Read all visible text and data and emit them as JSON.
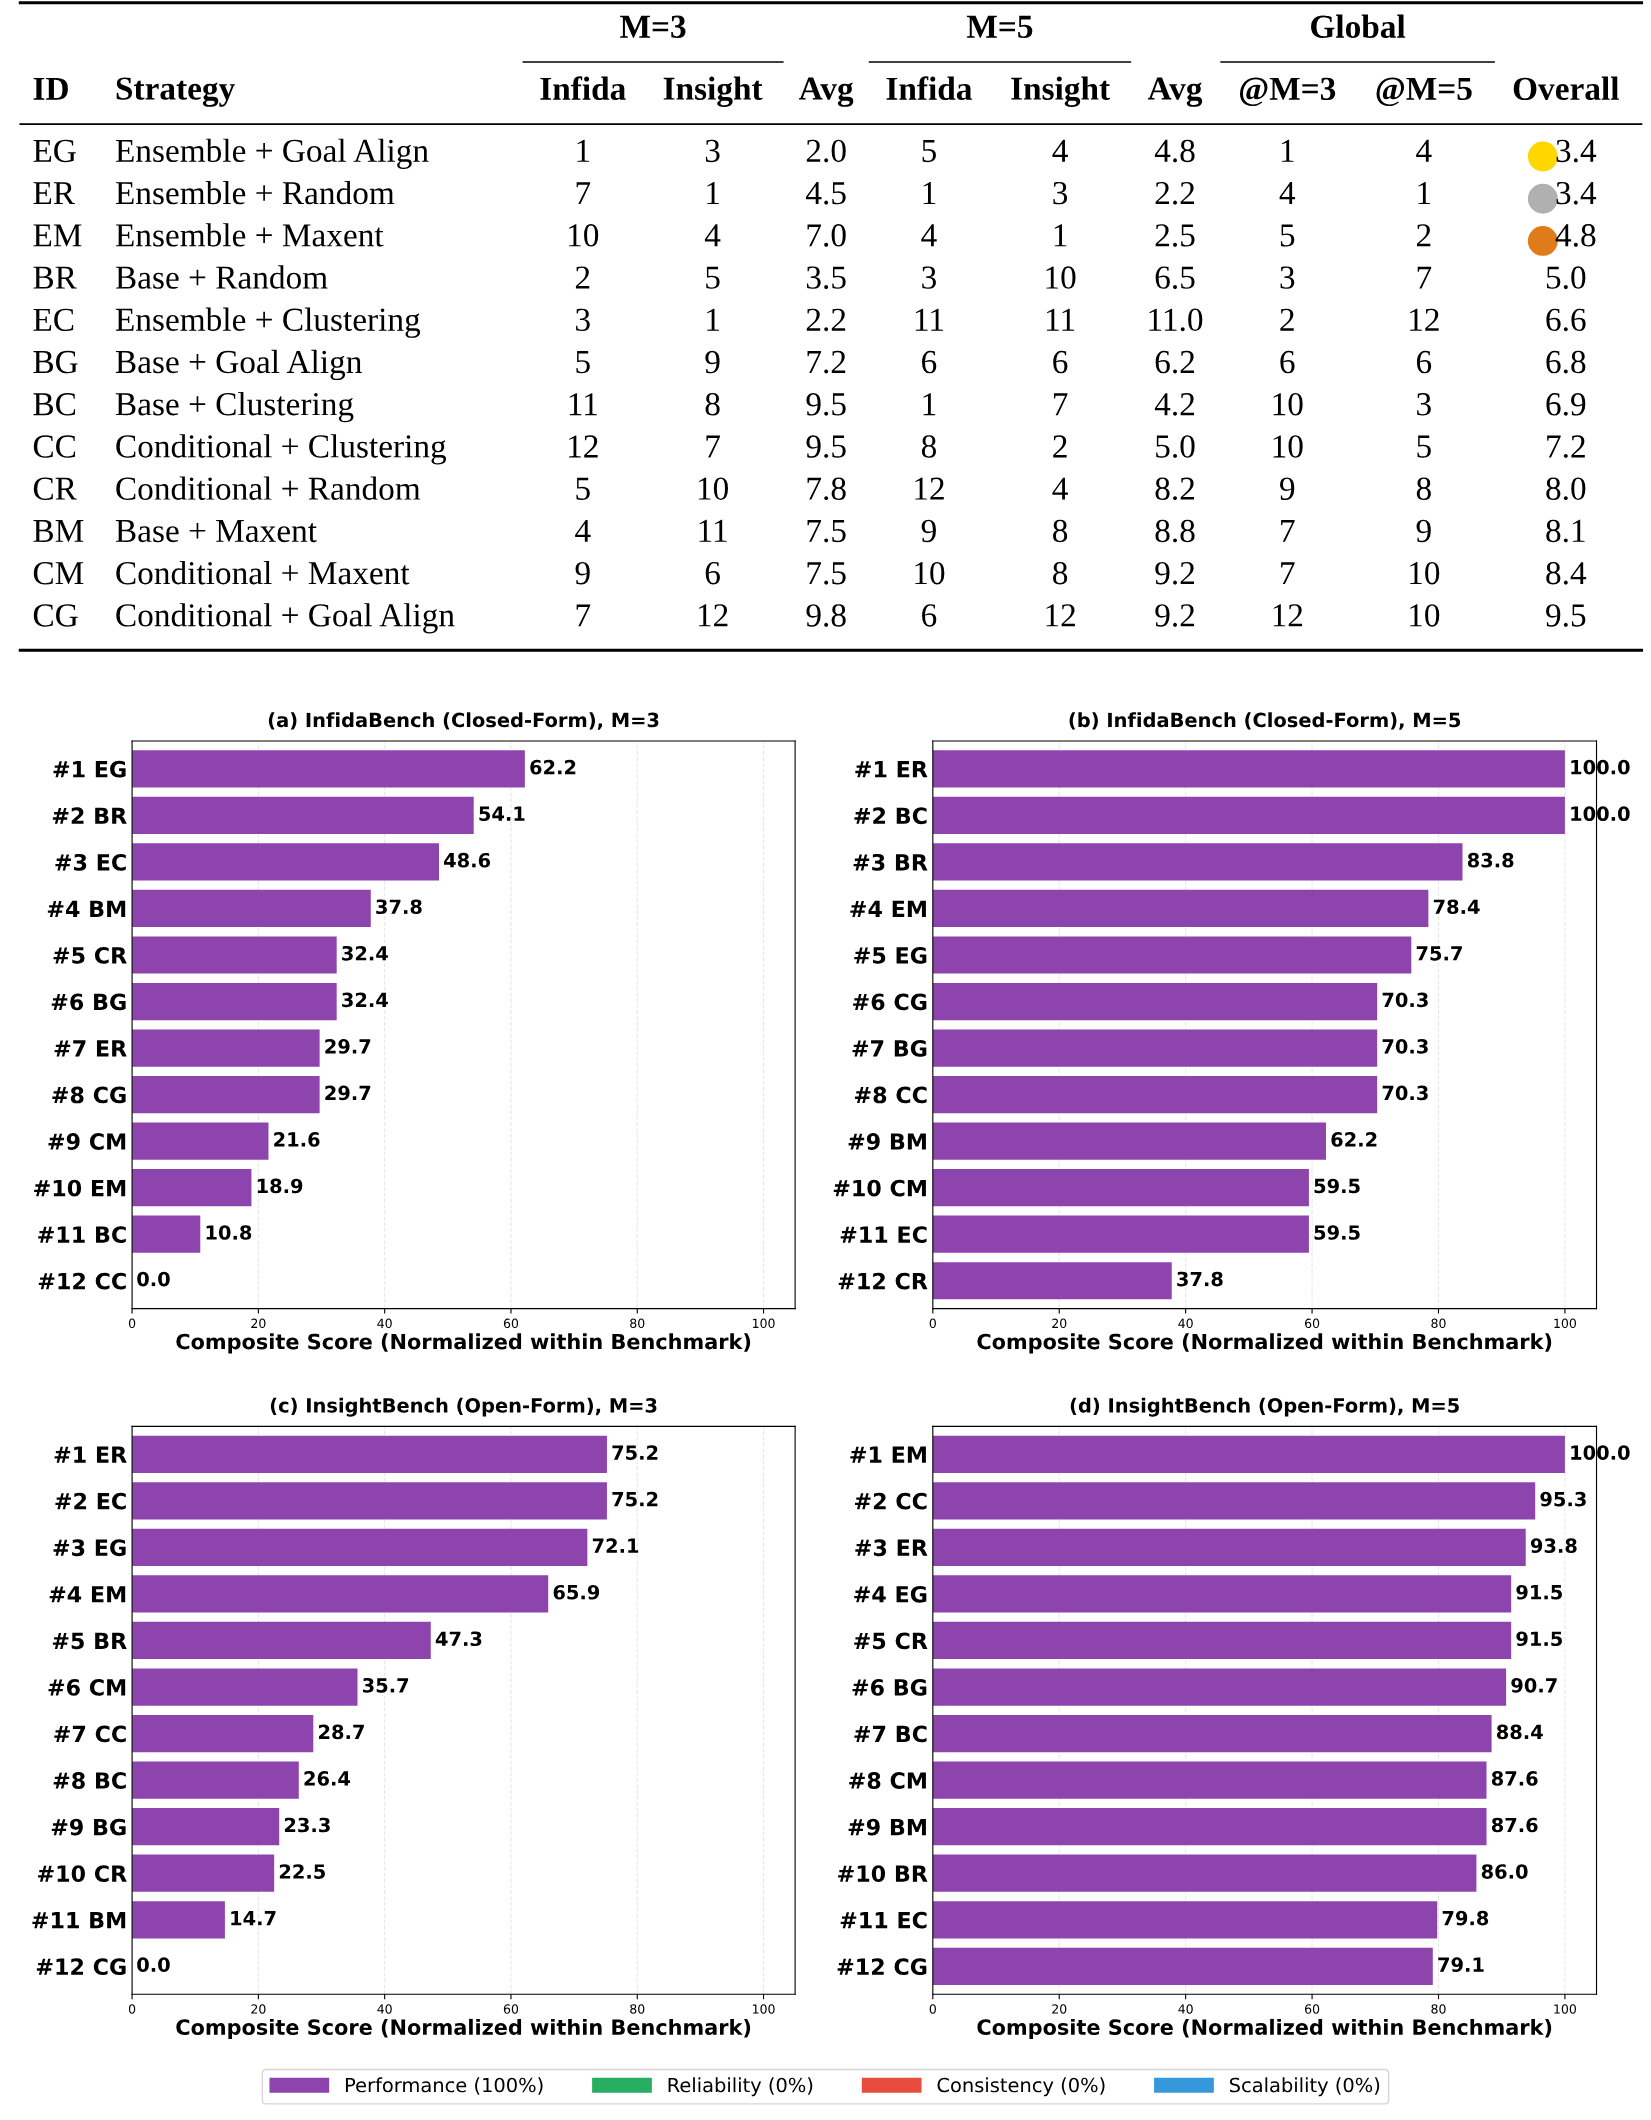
{
  "chart_data": [
    {
      "type": "other",
      "ylabel": "ID",
      "y2label": "Strategy",
      "annotations": [
        "M=3",
        "M=5",
        "Global"
      ],
      "categories": [
        "Infida",
        "Insight",
        "Avg",
        "Infida",
        "Insight",
        "Avg",
        "@M=3",
        "@M=5",
        "Overall"
      ],
      "y_categories": [
        "EG",
        "ER",
        "EM",
        "BR",
        "EC",
        "BG",
        "BC",
        "CC",
        "CR",
        "BM",
        "CM",
        "CG"
      ],
      "y2_categories": [
        "Ensemble + Goal Align",
        "Ensemble + Random",
        "Ensemble + Maxent",
        "Base + Random",
        "Ensemble + Clustering",
        "Base + Goal Align",
        "Base + Clustering",
        "Conditional + Clustering",
        "Conditional + Random",
        "Base + Maxent",
        "Conditional + Maxent",
        "Conditional + Goal Align"
      ],
      "cell_labels": [
        [
          "1",
          "3",
          "2.0",
          "5",
          "4",
          "4.8",
          "1",
          "4",
          "3.4"
        ],
        [
          "7",
          "1",
          "4.5",
          "1",
          "3",
          "2.2",
          "4",
          "1",
          "3.4"
        ],
        [
          "10",
          "4",
          "7.0",
          "4",
          "1",
          "2.5",
          "5",
          "2",
          "4.8"
        ],
        [
          "2",
          "5",
          "3.5",
          "3",
          "10",
          "6.5",
          "3",
          "7",
          "5.0"
        ],
        [
          "3",
          "1",
          "2.2",
          "11",
          "11",
          "11.0",
          "2",
          "12",
          "6.6"
        ],
        [
          "5",
          "9",
          "7.2",
          "6",
          "6",
          "6.2",
          "6",
          "6",
          "6.8"
        ],
        [
          "11",
          "8",
          "9.5",
          "1",
          "7",
          "4.2",
          "10",
          "3",
          "6.9"
        ],
        [
          "12",
          "7",
          "9.5",
          "8",
          "2",
          "5.0",
          "10",
          "5",
          "7.2"
        ],
        [
          "5",
          "10",
          "7.8",
          "12",
          "4",
          "8.2",
          "9",
          "8",
          "8.0"
        ],
        [
          "4",
          "11",
          "7.5",
          "9",
          "8",
          "8.8",
          "7",
          "9",
          "8.1"
        ],
        [
          "9",
          "6",
          "7.5",
          "10",
          "8",
          "9.2",
          "7",
          "10",
          "8.4"
        ],
        [
          "7",
          "12",
          "9.8",
          "6",
          "12",
          "9.2",
          "12",
          "10",
          "9.5"
        ]
      ],
      "colors": [
        "#ffd700",
        "#b0b0b0",
        "#e07b1a",
        null,
        null,
        null,
        null,
        null,
        null,
        null,
        null,
        null
      ]
    },
    {
      "type": "bar",
      "orientation": "horizontal",
      "title": "(a) InfidaBench (Closed-Form), M=3",
      "xlabel": "Composite Score (Normalized within Benchmark)",
      "categories": [
        "#1 EG",
        "#2 BR",
        "#3 EC",
        "#4 BM",
        "#5 CR",
        "#6 BG",
        "#7 ER",
        "#8 CG",
        "#9 CM",
        "#10 EM",
        "#11 BC",
        "#12 CC"
      ],
      "values": [
        62.2,
        54.1,
        48.6,
        37.8,
        32.4,
        32.4,
        29.7,
        29.7,
        21.6,
        18.9,
        10.8,
        0.0
      ],
      "color": "#8e44ad",
      "value_labels": [
        "62.2",
        "54.1",
        "48.6",
        "37.8",
        "32.4",
        "32.4",
        "29.7",
        "29.7",
        "21.6",
        "18.9",
        "10.8",
        "0.0"
      ],
      "xlim": [
        0,
        105
      ],
      "xticks": [
        0,
        20,
        40,
        60,
        80,
        100
      ],
      "grid": "x"
    },
    {
      "type": "bar",
      "orientation": "horizontal",
      "title": "(b) InfidaBench (Closed-Form), M=5",
      "xlabel": "Composite Score (Normalized within Benchmark)",
      "categories": [
        "#1 ER",
        "#2 BC",
        "#3 BR",
        "#4 EM",
        "#5 EG",
        "#6 CG",
        "#7 BG",
        "#8 CC",
        "#9 BM",
        "#10 CM",
        "#11 EC",
        "#12 CR"
      ],
      "values": [
        100.0,
        100.0,
        83.8,
        78.4,
        75.7,
        70.3,
        70.3,
        70.3,
        62.2,
        59.5,
        59.5,
        37.8
      ],
      "color": "#8e44ad",
      "value_labels": [
        "100.0",
        "100.0",
        "83.8",
        "78.4",
        "75.7",
        "70.3",
        "70.3",
        "70.3",
        "62.2",
        "59.5",
        "59.5",
        "37.8"
      ],
      "xlim": [
        0,
        105
      ],
      "xticks": [
        0,
        20,
        40,
        60,
        80,
        100
      ],
      "grid": "x"
    },
    {
      "type": "bar",
      "orientation": "horizontal",
      "title": "(c) InsightBench (Open-Form), M=3",
      "xlabel": "Composite Score (Normalized within Benchmark)",
      "categories": [
        "#1 ER",
        "#2 EC",
        "#3 EG",
        "#4 EM",
        "#5 BR",
        "#6 CM",
        "#7 CC",
        "#8 BC",
        "#9 BG",
        "#10 CR",
        "#11 BM",
        "#12 CG"
      ],
      "values": [
        75.2,
        75.2,
        72.1,
        65.9,
        47.3,
        35.7,
        28.7,
        26.4,
        23.3,
        22.5,
        14.7,
        0.0
      ],
      "color": "#8e44ad",
      "value_labels": [
        "75.2",
        "75.2",
        "72.1",
        "65.9",
        "47.3",
        "35.7",
        "28.7",
        "26.4",
        "23.3",
        "22.5",
        "14.7",
        "0.0"
      ],
      "xlim": [
        0,
        105
      ],
      "xticks": [
        0,
        20,
        40,
        60,
        80,
        100
      ],
      "grid": "x"
    },
    {
      "type": "bar",
      "orientation": "horizontal",
      "title": "(d) InsightBench (Open-Form), M=5",
      "xlabel": "Composite Score (Normalized within Benchmark)",
      "categories": [
        "#1 EM",
        "#2 CC",
        "#3 ER",
        "#4 EG",
        "#5 CR",
        "#6 BG",
        "#7 BC",
        "#8 CM",
        "#9 BM",
        "#10 BR",
        "#11 EC",
        "#12 CG"
      ],
      "series": [
        {
          "name": "Performance (100%)",
          "color": "#8e44ad",
          "values": [
            100.0,
            95.3,
            93.8,
            91.5,
            91.5,
            90.7,
            88.4,
            87.6,
            87.6,
            86.0,
            79.8,
            79.1
          ],
          "value_labels": [
            "100.0",
            "95.3",
            "93.8",
            "91.5",
            "91.5",
            "90.7",
            "88.4",
            "87.6",
            "87.6",
            "86.0",
            "79.8",
            "79.1"
          ]
        },
        {
          "name": "Reliability (0%)",
          "color": "#27ae60",
          "values": [
            0,
            0,
            0,
            0,
            0,
            0,
            0,
            0,
            0,
            0,
            0,
            0
          ]
        },
        {
          "name": "Consistency (0%)",
          "color": "#e74c3c",
          "values": [
            0,
            0,
            0,
            0,
            0,
            0,
            0,
            0,
            0,
            0,
            0,
            0
          ]
        },
        {
          "name": "Scalability (0%)",
          "color": "#3498db",
          "values": [
            0,
            0,
            0,
            0,
            0,
            0,
            0,
            0,
            0,
            0,
            0,
            0
          ]
        }
      ],
      "xlim": [
        0,
        105
      ],
      "xticks": [
        0,
        20,
        40,
        60,
        80,
        100
      ],
      "grid": "x",
      "legend": "bottom"
    }
  ]
}
